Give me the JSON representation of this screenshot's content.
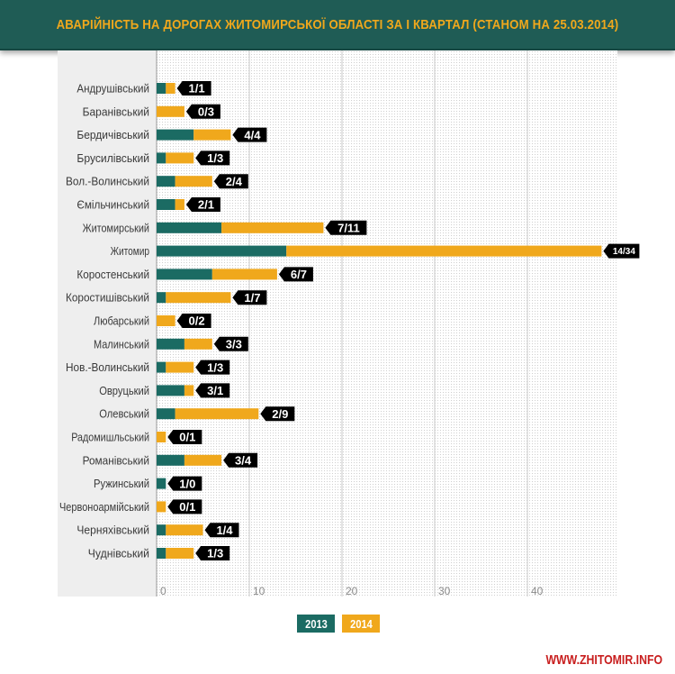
{
  "header": {
    "title": "АВАРІЙНІСТЬ НА ДОРОГАХ ЖИТОМИРСЬКОЇ ОБЛАСТІ ЗА І КВАРТАЛ (СТАНОМ НА 25.03.2014)"
  },
  "legend": {
    "series_2013": "2013",
    "series_2014": "2014"
  },
  "watermark": "WWW.ZHITOMIR.INFO",
  "colors": {
    "banner": "#1f5c55",
    "title": "#f0a81c",
    "series_2013": "#1b6b63",
    "series_2014": "#f0a81c",
    "label_bg": "#000000",
    "watermark": "#c81e1e"
  },
  "chart_data": {
    "type": "bar",
    "orientation": "horizontal",
    "stacked": true,
    "title": "АВАРІЙНІСТЬ НА ДОРОГАХ ЖИТОМИРСЬКОЇ ОБЛАСТІ ЗА І КВАРТАЛ (СТАНОМ НА 25.03.2014)",
    "categories": [
      "Андрушівський",
      "Баранівський",
      "Бердичівський",
      "Брусилівський",
      "Вол.-Волинський",
      "Ємільчинський",
      "Житомирський",
      "Житомир",
      "Коростенський",
      "Коростишівський",
      "Любарський",
      "Малинський",
      "Нов.-Волинський",
      "Овруцький",
      "Олевський",
      "Радомишльський",
      "Романівський",
      "Ружинський",
      "Червоноармійський",
      "Черняхівський",
      "Чуднівський"
    ],
    "series": [
      {
        "name": "2013",
        "values": [
          1,
          0,
          4,
          1,
          2,
          2,
          7,
          14,
          6,
          1,
          0,
          3,
          1,
          3,
          2,
          0,
          3,
          1,
          0,
          1,
          1
        ]
      },
      {
        "name": "2014",
        "values": [
          1,
          3,
          4,
          3,
          4,
          1,
          11,
          34,
          7,
          7,
          2,
          3,
          3,
          1,
          9,
          1,
          4,
          0,
          1,
          4,
          3
        ]
      }
    ],
    "data_labels": [
      "1/1",
      "0/3",
      "4/4",
      "1/3",
      "2/4",
      "2/1",
      "7/11",
      "14/34",
      "6/7",
      "1/7",
      "0/2",
      "3/3",
      "1/3",
      "3/1",
      "2/9",
      "0/1",
      "3/4",
      "1/0",
      "0/1",
      "1/4",
      "1/3"
    ],
    "x_ticks": [
      "0",
      "10",
      "20",
      "30",
      "40"
    ],
    "xlim": [
      0,
      49
    ],
    "grid": true,
    "legend_position": "bottom-center"
  }
}
